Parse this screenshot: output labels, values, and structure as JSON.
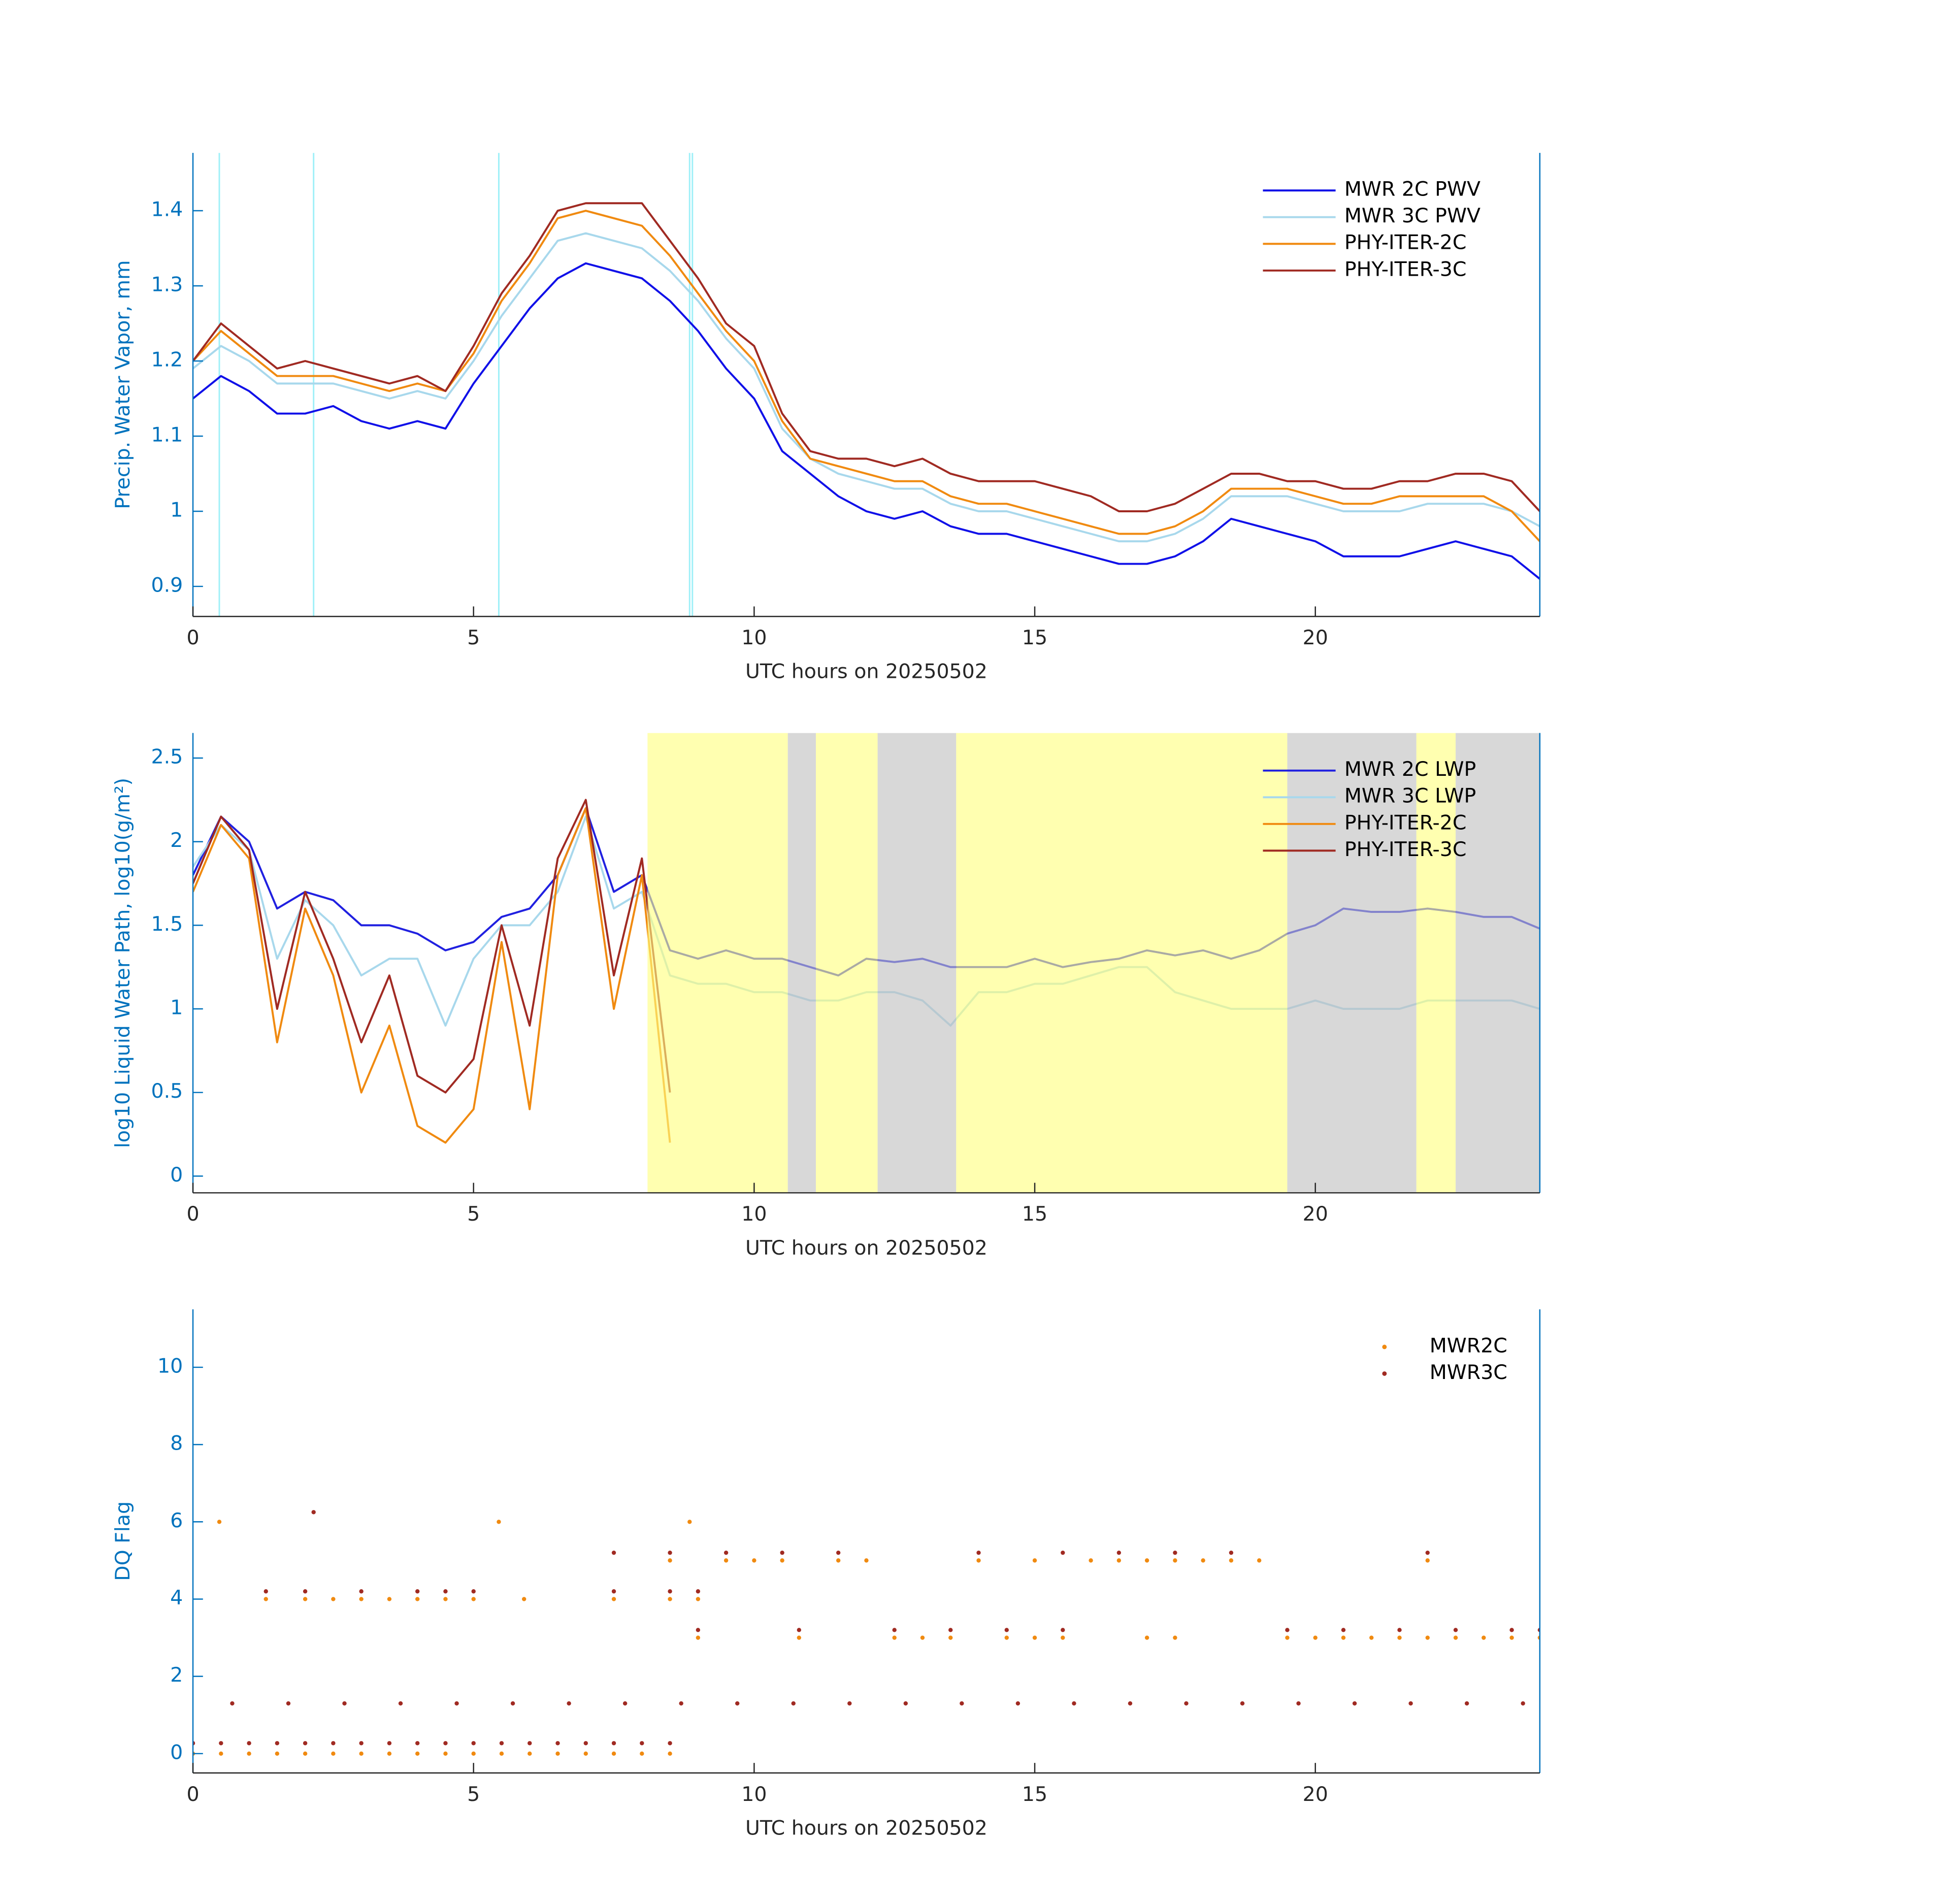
{
  "chart_data": [
    {
      "type": "line",
      "xlabel": "UTC hours on 20250502",
      "ylabel": "Precip. Water Vapor, mm",
      "xlim": [
        0,
        24
      ],
      "xticks": [
        0,
        5,
        10,
        15,
        20
      ],
      "ylim": [
        0.86,
        1.477
      ],
      "yticks": [
        0.9,
        1,
        1.1,
        1.2,
        1.3,
        1.4
      ],
      "legend": "upper right",
      "vlines": {
        "color": "#9ff0f8",
        "x": [
          0.47,
          2.15,
          5.45,
          8.85,
          8.9
        ]
      },
      "x": [
        0,
        0.5,
        1,
        1.5,
        2,
        2.5,
        3,
        3.5,
        4,
        4.5,
        5,
        5.5,
        6,
        6.5,
        7,
        7.5,
        8,
        8.5,
        9,
        9.5,
        10,
        10.5,
        11,
        11.5,
        12,
        12.5,
        13,
        13.5,
        14,
        14.5,
        15,
        15.5,
        16,
        16.5,
        17,
        17.5,
        18,
        18.5,
        19,
        19.5,
        20,
        20.5,
        21,
        21.5,
        22,
        22.5,
        23,
        23.5,
        24
      ],
      "series": [
        {
          "name": "MWR 2C PWV",
          "color": "#1010e8",
          "values": [
            1.15,
            1.18,
            1.16,
            1.13,
            1.13,
            1.14,
            1.12,
            1.11,
            1.12,
            1.11,
            1.17,
            1.22,
            1.27,
            1.31,
            1.33,
            1.32,
            1.31,
            1.28,
            1.24,
            1.19,
            1.15,
            1.08,
            1.05,
            1.02,
            1.0,
            0.99,
            1.0,
            0.98,
            0.97,
            0.97,
            0.96,
            0.95,
            0.94,
            0.93,
            0.93,
            0.94,
            0.96,
            0.99,
            0.98,
            0.97,
            0.96,
            0.94,
            0.94,
            0.94,
            0.95,
            0.96,
            0.95,
            0.94,
            0.91
          ]
        },
        {
          "name": "MWR 3C PWV",
          "color": "#a8d8ec",
          "values": [
            1.19,
            1.22,
            1.2,
            1.17,
            1.17,
            1.17,
            1.16,
            1.15,
            1.16,
            1.15,
            1.2,
            1.26,
            1.31,
            1.36,
            1.37,
            1.36,
            1.35,
            1.32,
            1.28,
            1.23,
            1.19,
            1.11,
            1.07,
            1.05,
            1.04,
            1.03,
            1.03,
            1.01,
            1.0,
            1.0,
            0.99,
            0.98,
            0.97,
            0.96,
            0.96,
            0.97,
            0.99,
            1.02,
            1.02,
            1.02,
            1.01,
            1.0,
            1.0,
            1.0,
            1.01,
            1.01,
            1.01,
            1.0,
            0.98
          ]
        },
        {
          "name": "PHY-ITER-2C",
          "color": "#f08a10",
          "values": [
            1.2,
            1.24,
            1.21,
            1.18,
            1.18,
            1.18,
            1.17,
            1.16,
            1.17,
            1.16,
            1.21,
            1.28,
            1.33,
            1.39,
            1.4,
            1.39,
            1.38,
            1.34,
            1.29,
            1.24,
            1.2,
            1.12,
            1.07,
            1.06,
            1.05,
            1.04,
            1.04,
            1.02,
            1.01,
            1.01,
            1.0,
            0.99,
            0.98,
            0.97,
            0.97,
            0.98,
            1.0,
            1.03,
            1.03,
            1.03,
            1.02,
            1.01,
            1.01,
            1.02,
            1.02,
            1.02,
            1.02,
            1.0,
            0.96
          ]
        },
        {
          "name": "PHY-ITER-3C",
          "color": "#a02a22",
          "values": [
            1.2,
            1.25,
            1.22,
            1.19,
            1.2,
            1.19,
            1.18,
            1.17,
            1.18,
            1.16,
            1.22,
            1.29,
            1.34,
            1.4,
            1.41,
            1.41,
            1.41,
            1.36,
            1.31,
            1.25,
            1.22,
            1.13,
            1.08,
            1.07,
            1.07,
            1.06,
            1.07,
            1.05,
            1.04,
            1.04,
            1.04,
            1.03,
            1.02,
            1.0,
            1.0,
            1.01,
            1.03,
            1.05,
            1.05,
            1.04,
            1.04,
            1.03,
            1.03,
            1.04,
            1.04,
            1.05,
            1.05,
            1.04,
            1.0
          ]
        }
      ]
    },
    {
      "type": "line",
      "xlabel": "UTC hours on 20250502",
      "ylabel": "log10 Liquid Water Path, log10(g/m²)",
      "xlim": [
        0,
        24
      ],
      "xticks": [
        0,
        5,
        10,
        15,
        20
      ],
      "ylim": [
        -0.1,
        2.65
      ],
      "yticks": [
        0,
        0.5,
        1,
        1.5,
        2,
        2.5
      ],
      "legend": "upper right",
      "spans": [
        {
          "color": "#ffff80",
          "x": [
            8.1,
            10.6
          ]
        },
        {
          "color": "#c0c0c0",
          "x": [
            10.6,
            11.1
          ]
        },
        {
          "color": "#ffff80",
          "x": [
            11.1,
            12.2
          ]
        },
        {
          "color": "#c0c0c0",
          "x": [
            12.2,
            13.6
          ]
        },
        {
          "color": "#ffff80",
          "x": [
            13.6,
            19.5
          ]
        },
        {
          "color": "#c0c0c0",
          "x": [
            19.5,
            21.8
          ]
        },
        {
          "color": "#ffff80",
          "x": [
            21.8,
            22.5
          ]
        },
        {
          "color": "#c0c0c0",
          "x": [
            22.5,
            24
          ]
        }
      ],
      "x": [
        0,
        0.5,
        1,
        1.5,
        2,
        2.5,
        3,
        3.5,
        4,
        4.5,
        5,
        5.5,
        6,
        6.5,
        7,
        7.5,
        8,
        8.5,
        9,
        9.5,
        10,
        10.5,
        11,
        11.5,
        12,
        12.5,
        13,
        13.5,
        14,
        14.5,
        15,
        15.5,
        16,
        16.5,
        17,
        17.5,
        18,
        18.5,
        19,
        19.5,
        20,
        20.5,
        21,
        21.5,
        22,
        22.5,
        23,
        23.5,
        24
      ],
      "series": [
        {
          "name": "MWR 2C LWP",
          "color": "#2020e0",
          "values": [
            1.8,
            2.15,
            2.0,
            1.6,
            1.7,
            1.65,
            1.5,
            1.5,
            1.45,
            1.35,
            1.4,
            1.55,
            1.6,
            1.8,
            2.2,
            1.7,
            1.8,
            1.35,
            1.3,
            1.35,
            1.3,
            1.3,
            1.25,
            1.2,
            1.3,
            1.28,
            1.3,
            1.25,
            1.25,
            1.25,
            1.3,
            1.25,
            1.28,
            1.3,
            1.35,
            1.32,
            1.35,
            1.3,
            1.35,
            1.45,
            1.5,
            1.6,
            1.58,
            1.58,
            1.6,
            1.58,
            1.55,
            1.55,
            1.48
          ]
        },
        {
          "name": "MWR 3C LWP",
          "color": "#a8d8ec",
          "values": [
            1.85,
            2.1,
            1.95,
            1.3,
            1.65,
            1.5,
            1.2,
            1.3,
            1.3,
            0.9,
            1.3,
            1.5,
            1.5,
            1.7,
            2.15,
            1.6,
            1.7,
            1.2,
            1.15,
            1.15,
            1.1,
            1.1,
            1.05,
            1.05,
            1.1,
            1.1,
            1.05,
            0.9,
            1.1,
            1.1,
            1.15,
            1.15,
            1.2,
            1.25,
            1.25,
            1.1,
            1.05,
            1.0,
            1.0,
            1.0,
            1.05,
            1.0,
            1.0,
            1.0,
            1.05,
            1.05,
            1.05,
            1.05,
            1.0
          ]
        },
        {
          "name": "PHY-ITER-2C",
          "color": "#f08a10",
          "values": [
            1.7,
            2.1,
            1.9,
            0.8,
            1.6,
            1.2,
            0.5,
            0.9,
            0.3,
            0.2,
            0.4,
            1.4,
            0.4,
            1.8,
            2.2,
            1.0,
            1.8,
            0.2,
            null,
            null,
            null,
            null,
            null,
            null,
            null,
            null,
            null,
            null,
            null,
            null,
            null,
            null,
            null,
            null,
            null,
            null,
            null,
            null,
            null,
            null,
            null,
            null,
            null,
            null,
            null,
            null,
            null,
            null,
            null
          ]
        },
        {
          "name": "PHY-ITER-3C",
          "color": "#a02a22",
          "values": [
            1.75,
            2.15,
            1.95,
            1.0,
            1.7,
            1.3,
            0.8,
            1.2,
            0.6,
            0.5,
            0.7,
            1.5,
            0.9,
            1.9,
            2.25,
            1.2,
            1.9,
            0.5,
            null,
            null,
            null,
            null,
            null,
            null,
            null,
            null,
            null,
            null,
            null,
            null,
            null,
            null,
            null,
            null,
            null,
            null,
            null,
            null,
            null,
            null,
            null,
            null,
            null,
            null,
            null,
            null,
            null,
            null,
            null
          ]
        }
      ]
    },
    {
      "type": "scatter",
      "xlabel": "UTC hours on 20250502",
      "ylabel": "DQ Flag",
      "xlim": [
        0,
        24
      ],
      "xticks": [
        0,
        5,
        10,
        15,
        20
      ],
      "ylim": [
        -0.5,
        11.5
      ],
      "yticks": [
        0,
        2,
        4,
        6,
        8,
        10
      ],
      "legend": "upper right",
      "series": [
        {
          "name": "MWR2C",
          "color": "#f08a10",
          "x": [
            0,
            0.5,
            1,
            1.5,
            2,
            2.5,
            3,
            3.5,
            4,
            4.5,
            5,
            5.5,
            6,
            6.5,
            7,
            7.5,
            8,
            8.5,
            1.3,
            2,
            2.5,
            3,
            3.5,
            4,
            4.5,
            5,
            5.9,
            7.5,
            8.5,
            9,
            8.5,
            9.5,
            10,
            10.5,
            11.5,
            12,
            14,
            15,
            16,
            16.5,
            17,
            17.5,
            18,
            18.5,
            19,
            22,
            9,
            10.8,
            12.5,
            13,
            13.5,
            14.5,
            15,
            15.5,
            17,
            17.5,
            19.5,
            20,
            20.5,
            21,
            21.5,
            22,
            22.5,
            23,
            23.5,
            24,
            0.47,
            5.45,
            8.85
          ],
          "values": [
            0,
            0,
            0,
            0,
            0,
            0,
            0,
            0,
            0,
            0,
            0,
            0,
            0,
            0,
            0,
            0,
            0,
            0,
            4,
            4,
            4,
            4,
            4,
            4,
            4,
            4,
            4,
            4,
            4,
            4,
            5,
            5,
            5,
            5,
            5,
            5,
            5,
            5,
            5,
            5,
            5,
            5,
            5,
            5,
            5,
            5,
            3,
            3,
            3,
            3,
            3,
            3,
            3,
            3,
            3,
            3,
            3,
            3,
            3,
            3,
            3,
            3,
            3,
            3,
            3,
            3,
            6,
            6,
            6
          ]
        },
        {
          "name": "MWR3C",
          "color": "#a02a22",
          "x": [
            0,
            0.5,
            1,
            1.5,
            2,
            2.5,
            3,
            3.5,
            4,
            4.5,
            5,
            5.5,
            6,
            6.5,
            7,
            7.5,
            8,
            8.5,
            0.7,
            1.7,
            2.7,
            3.7,
            4.7,
            5.7,
            6.7,
            7.7,
            8.7,
            9.7,
            10.7,
            11.7,
            12.7,
            13.7,
            14.7,
            15.7,
            16.7,
            17.7,
            18.7,
            19.7,
            20.7,
            21.7,
            22.7,
            23.7,
            2.15,
            1.3,
            2,
            3,
            4,
            4.5,
            5,
            7.5,
            8.5,
            9,
            7.5,
            8.5,
            9.5,
            10.5,
            11.5,
            14,
            15.5,
            16.5,
            17.5,
            18.5,
            22,
            9,
            10.8,
            12.5,
            13.5,
            14.5,
            15.5,
            19.5,
            20.5,
            21.5,
            22.5,
            23.5,
            24
          ],
          "values": [
            0.27,
            0.27,
            0.27,
            0.27,
            0.27,
            0.27,
            0.27,
            0.27,
            0.27,
            0.27,
            0.27,
            0.27,
            0.27,
            0.27,
            0.27,
            0.27,
            0.27,
            0.27,
            1.3,
            1.3,
            1.3,
            1.3,
            1.3,
            1.3,
            1.3,
            1.3,
            1.3,
            1.3,
            1.3,
            1.3,
            1.3,
            1.3,
            1.3,
            1.3,
            1.3,
            1.3,
            1.3,
            1.3,
            1.3,
            1.3,
            1.3,
            1.3,
            6.25,
            4.2,
            4.2,
            4.2,
            4.2,
            4.2,
            4.2,
            4.2,
            4.2,
            4.2,
            5.2,
            5.2,
            5.2,
            5.2,
            5.2,
            5.2,
            5.2,
            5.2,
            5.2,
            5.2,
            5.2,
            3.2,
            3.2,
            3.2,
            3.2,
            3.2,
            3.2,
            3.2,
            3.2,
            3.2,
            3.2,
            3.2,
            3.2
          ]
        }
      ]
    }
  ]
}
